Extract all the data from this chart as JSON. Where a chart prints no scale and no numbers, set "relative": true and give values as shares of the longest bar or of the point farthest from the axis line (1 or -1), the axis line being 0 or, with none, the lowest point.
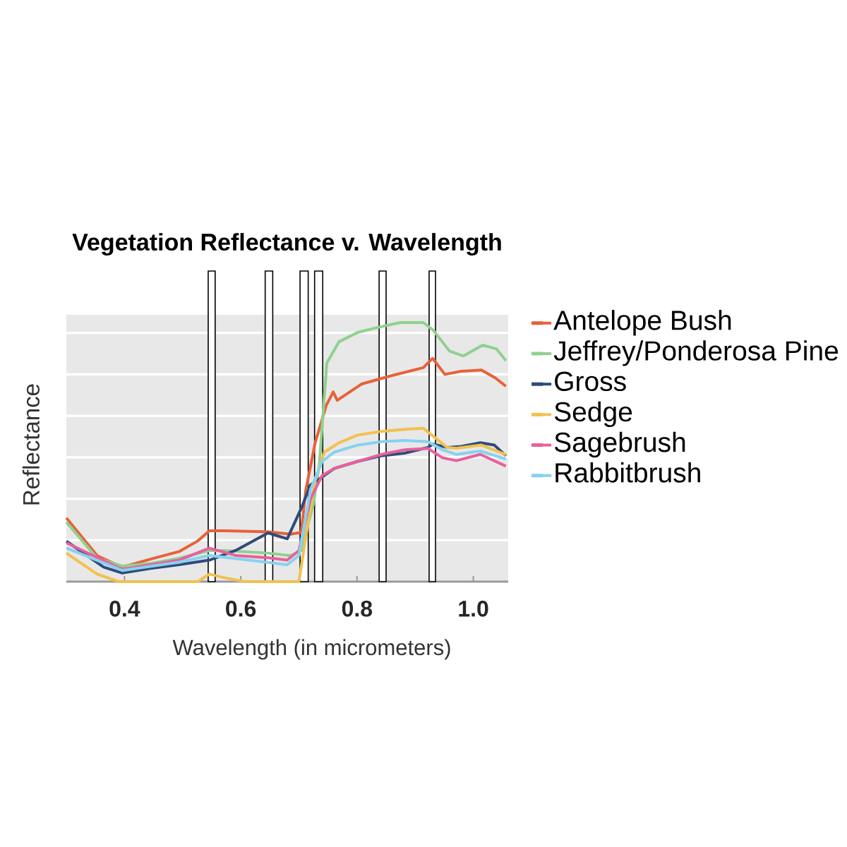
{
  "chart_data": {
    "type": "line",
    "title": "Vegetation Reflectance v. Wavelength",
    "xlabel": "Wavelength (in micrometers)",
    "ylabel": "Reflectance",
    "relative": true,
    "xlim": [
      0.3,
      1.06
    ],
    "xticks": [
      0.4,
      0.6,
      0.8,
      {
        "value": 1,
        "label": "1.0"
      }
    ],
    "grid": "y",
    "legend": "right",
    "bands": [
      {
        "axis": "x",
        "from": 0.544,
        "to": 0.556,
        "color": "#ffffff"
      },
      {
        "axis": "x",
        "from": 0.642,
        "to": 0.655,
        "color": "#ffffff"
      },
      {
        "axis": "x",
        "from": 0.702,
        "to": 0.716,
        "color": "#ffffff"
      },
      {
        "axis": "x",
        "from": 0.727,
        "to": 0.741,
        "color": "#ffffff"
      },
      {
        "axis": "x",
        "from": 0.838,
        "to": 0.85,
        "color": "#ffffff"
      },
      {
        "axis": "x",
        "from": 0.924,
        "to": 0.935,
        "color": "#ffffff"
      }
    ],
    "series": [
      {
        "name": "Antelope Bush",
        "color": "#e8613a",
        "x": [
          0.3,
          0.353,
          0.396,
          0.445,
          0.494,
          0.526,
          0.546,
          0.574,
          0.647,
          0.686,
          0.704,
          0.712,
          0.728,
          0.747,
          0.759,
          0.766,
          0.808,
          0.859,
          0.914,
          0.93,
          0.951,
          0.979,
          1.014,
          1.038,
          1.056
        ],
        "values": [
          0.246,
          0.1,
          0.056,
          0.087,
          0.116,
          0.157,
          0.196,
          0.196,
          0.192,
          0.183,
          0.19,
          0.355,
          0.536,
          0.68,
          0.732,
          0.7,
          0.763,
          0.795,
          0.826,
          0.862,
          0.8,
          0.812,
          0.817,
          0.786,
          0.754
        ]
      },
      {
        "name": "Jeffrey/Ponderosa Pine",
        "color": "#8fd18f",
        "x": [
          0.3,
          0.353,
          0.396,
          0.445,
          0.494,
          0.546,
          0.574,
          0.647,
          0.686,
          0.704,
          0.725,
          0.735,
          0.748,
          0.769,
          0.801,
          0.833,
          0.874,
          0.914,
          0.931,
          0.959,
          0.983,
          1.016,
          1.04,
          1.056
        ],
        "values": [
          0.23,
          0.09,
          0.06,
          0.07,
          0.09,
          0.12,
          0.12,
          0.11,
          0.1,
          0.12,
          0.3,
          0.45,
          0.844,
          0.926,
          0.962,
          0.98,
          1.0,
          1.0,
          0.971,
          0.89,
          0.871,
          0.913,
          0.898,
          0.853
        ]
      },
      {
        "name": "Gross",
        "color": "#2f4b7c",
        "x": [
          0.3,
          0.364,
          0.396,
          0.445,
          0.494,
          0.546,
          0.591,
          0.647,
          0.68,
          0.704,
          0.72,
          0.761,
          0.801,
          0.842,
          0.882,
          0.922,
          0.931,
          0.955,
          0.979,
          1.012,
          1.036,
          1.056
        ],
        "values": [
          0.156,
          0.056,
          0.033,
          0.051,
          0.065,
          0.083,
          0.12,
          0.188,
          0.165,
          0.283,
          0.373,
          0.437,
          0.464,
          0.486,
          0.496,
          0.518,
          0.531,
          0.518,
          0.522,
          0.536,
          0.527,
          0.486
        ]
      },
      {
        "name": "Sedge",
        "color": "#f2c14e",
        "x": [
          0.3,
          0.353,
          0.39,
          0.526,
          0.546,
          0.574,
          0.607,
          0.7,
          0.712,
          0.728,
          0.744,
          0.769,
          0.8,
          0.842,
          0.882,
          0.914,
          0.955,
          0.971,
          1.014,
          1.056
        ],
        "values": [
          0.11,
          0.029,
          0.0,
          0.0,
          0.029,
          0.014,
          0.0,
          0.0,
          0.174,
          0.39,
          0.5,
          0.536,
          0.565,
          0.58,
          0.588,
          0.592,
          0.518,
          0.515,
          0.527,
          0.49
        ]
      },
      {
        "name": "Sagebrush",
        "color": "#e8609c",
        "x": [
          0.3,
          0.396,
          0.494,
          0.546,
          0.591,
          0.647,
          0.68,
          0.7,
          0.72,
          0.74,
          0.761,
          0.801,
          0.842,
          0.882,
          0.922,
          0.947,
          0.971,
          1.012,
          1.056
        ],
        "values": [
          0.15,
          0.047,
          0.083,
          0.129,
          0.101,
          0.092,
          0.083,
          0.12,
          0.32,
          0.41,
          0.437,
          0.464,
          0.491,
          0.509,
          0.514,
          0.478,
          0.467,
          0.491,
          0.446
        ]
      },
      {
        "name": "Rabbitbrush",
        "color": "#86d2f0",
        "x": [
          0.3,
          0.396,
          0.494,
          0.546,
          0.647,
          0.68,
          0.7,
          0.72,
          0.74,
          0.761,
          0.801,
          0.842,
          0.882,
          0.922,
          0.947,
          0.971,
          1.012,
          1.056
        ],
        "values": [
          0.13,
          0.043,
          0.075,
          0.101,
          0.074,
          0.065,
          0.101,
          0.355,
          0.464,
          0.5,
          0.527,
          0.54,
          0.545,
          0.54,
          0.509,
          0.491,
          0.504,
          0.473
        ]
      }
    ]
  }
}
